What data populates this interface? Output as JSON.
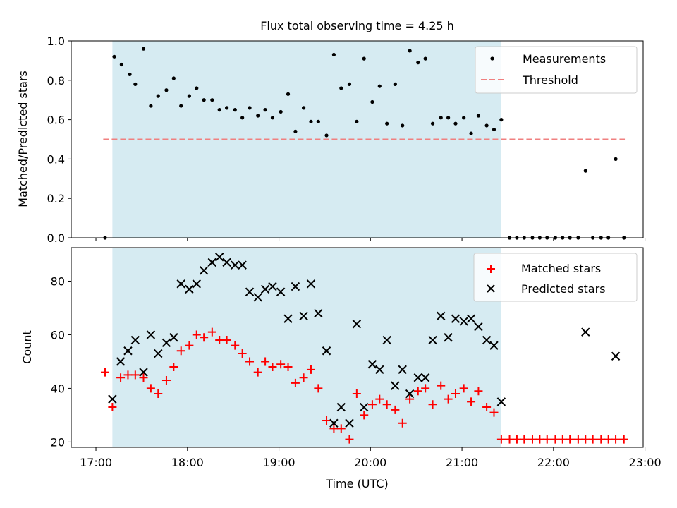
{
  "chart_data": {
    "type": "scatter",
    "title": "Flux total observing time = 4.25 h",
    "xlabel": "Time (UTC)",
    "x_ticks": [
      "17:00",
      "18:00",
      "19:00",
      "20:00",
      "21:00",
      "22:00",
      "23:00"
    ],
    "xlim_hours": [
      16.73,
      22.98
    ],
    "shaded_region_hours": [
      17.18,
      21.43
    ],
    "colors": {
      "shade": "#add8e6",
      "matched": "#ff0000",
      "predicted": "#000000",
      "threshold": "#f08080",
      "measurement": "#000000"
    },
    "panels": [
      {
        "ylabel": "Matched/Predicted stars",
        "ylim": [
          0,
          1.0
        ],
        "y_ticks": [
          "0.0",
          "0.2",
          "0.4",
          "0.6",
          "0.8",
          "1.0"
        ],
        "legend": [
          "Measurements",
          "Threshold"
        ],
        "legend_position": "top-right",
        "threshold": {
          "name": "Threshold",
          "y": 0.5,
          "x_range": [
            17.08,
            22.78
          ]
        },
        "series": [
          {
            "name": "Measurements",
            "marker": "dot",
            "x": [
              17.1,
              17.2,
              17.28,
              17.37,
              17.43,
              17.52,
              17.6,
              17.68,
              17.77,
              17.85,
              17.93,
              18.02,
              18.1,
              18.18,
              18.27,
              18.35,
              18.43,
              18.52,
              18.6,
              18.68,
              18.77,
              18.85,
              18.93,
              19.02,
              19.1,
              19.18,
              19.27,
              19.35,
              19.43,
              19.52,
              19.6,
              19.68,
              19.77,
              19.85,
              19.93,
              20.02,
              20.1,
              20.18,
              20.27,
              20.35,
              20.43,
              20.52,
              20.6,
              20.68,
              20.77,
              20.85,
              20.93,
              21.02,
              21.1,
              21.18,
              21.27,
              21.35,
              21.43,
              21.52,
              21.6,
              21.68,
              21.77,
              21.85,
              21.93,
              22.02,
              22.1,
              22.18,
              22.27,
              22.35,
              22.43,
              22.52,
              22.6,
              22.68,
              22.77
            ],
            "y": [
              0.0,
              0.92,
              0.88,
              0.83,
              0.78,
              0.96,
              0.67,
              0.72,
              0.75,
              0.81,
              0.67,
              0.72,
              0.76,
              0.7,
              0.7,
              0.65,
              0.66,
              0.65,
              0.61,
              0.66,
              0.62,
              0.65,
              0.61,
              0.64,
              0.73,
              0.54,
              0.66,
              0.59,
              0.59,
              0.52,
              0.93,
              0.76,
              0.78,
              0.59,
              0.91,
              0.69,
              0.77,
              0.58,
              0.78,
              0.57,
              0.95,
              0.89,
              0.91,
              0.58,
              0.61,
              0.61,
              0.58,
              0.61,
              0.53,
              0.62,
              0.57,
              0.55,
              0.6,
              0.0,
              0.0,
              0.0,
              0.0,
              0.0,
              0.0,
              0.0,
              0.0,
              0.0,
              0.0,
              0.34,
              0.0,
              0.0,
              0.0,
              0.4,
              0.0
            ]
          }
        ]
      },
      {
        "ylabel": "Count",
        "ylim": [
          18,
          92.5
        ],
        "y_ticks": [
          "20",
          "40",
          "60",
          "80"
        ],
        "legend": [
          "Matched stars",
          "Predicted stars"
        ],
        "legend_position": "top-right",
        "series": [
          {
            "name": "Matched stars",
            "marker": "plus",
            "x": [
              17.1,
              17.18,
              17.27,
              17.35,
              17.43,
              17.52,
              17.6,
              17.68,
              17.77,
              17.85,
              17.93,
              18.02,
              18.1,
              18.18,
              18.27,
              18.35,
              18.43,
              18.52,
              18.6,
              18.68,
              18.77,
              18.85,
              18.93,
              19.02,
              19.1,
              19.18,
              19.27,
              19.35,
              19.43,
              19.52,
              19.6,
              19.68,
              19.77,
              19.85,
              19.93,
              20.02,
              20.1,
              20.18,
              20.27,
              20.35,
              20.43,
              20.52,
              20.6,
              20.68,
              20.77,
              20.85,
              20.93,
              21.02,
              21.1,
              21.18,
              21.27,
              21.35,
              21.43,
              21.52,
              21.6,
              21.68,
              21.77,
              21.85,
              21.93,
              22.02,
              22.1,
              22.18,
              22.27,
              22.35,
              22.43,
              22.52,
              22.6,
              22.68,
              22.77
            ],
            "y": [
              46,
              33,
              44,
              45,
              45,
              44,
              40,
              38,
              43,
              48,
              54,
              56,
              60,
              59,
              61,
              58,
              58,
              56,
              53,
              50,
              46,
              50,
              48,
              49,
              48,
              42,
              44,
              47,
              40,
              28,
              25,
              25,
              21,
              38,
              30,
              34,
              36,
              34,
              32,
              27,
              36,
              39,
              40,
              34,
              41,
              36,
              38,
              40,
              35,
              39,
              33,
              31,
              21,
              21,
              21,
              21,
              21,
              21,
              21,
              21,
              21,
              21,
              21,
              21,
              21,
              21,
              21,
              21,
              21
            ]
          },
          {
            "name": "Predicted stars",
            "marker": "x",
            "x": [
              17.18,
              17.27,
              17.35,
              17.43,
              17.52,
              17.6,
              17.68,
              17.77,
              17.85,
              17.93,
              18.02,
              18.1,
              18.18,
              18.27,
              18.35,
              18.43,
              18.52,
              18.6,
              18.68,
              18.77,
              18.85,
              18.93,
              19.02,
              19.1,
              19.18,
              19.27,
              19.35,
              19.43,
              19.52,
              19.6,
              19.68,
              19.77,
              19.85,
              19.93,
              20.02,
              20.1,
              20.18,
              20.27,
              20.35,
              20.43,
              20.52,
              20.6,
              20.68,
              20.77,
              20.85,
              20.93,
              21.02,
              21.1,
              21.18,
              21.27,
              21.35,
              21.43,
              22.35,
              22.68
            ],
            "y": [
              36,
              50,
              54,
              58,
              46,
              60,
              53,
              57,
              59,
              79,
              77,
              79,
              84,
              87,
              89,
              87,
              86,
              86,
              76,
              74,
              77,
              78,
              76,
              66,
              78,
              67,
              79,
              68,
              54,
              27,
              33,
              27,
              64,
              33,
              49,
              47,
              58,
              41,
              47,
              38,
              44,
              44,
              58,
              67,
              59,
              66,
              65,
              66,
              63,
              58,
              56,
              35,
              61,
              52
            ]
          }
        ]
      }
    ]
  }
}
